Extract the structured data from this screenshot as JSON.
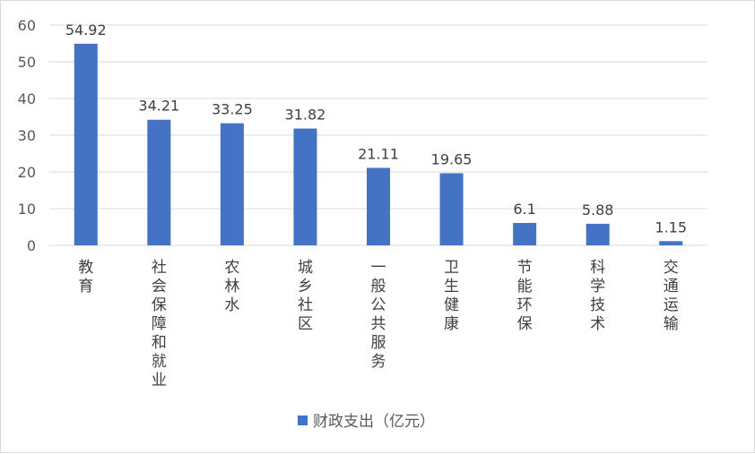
{
  "chart_data": {
    "type": "bar",
    "categories": [
      "教育",
      "社会保障和就业",
      "农林水",
      "城乡社区",
      "一般公共服务",
      "卫生健康",
      "节能环保",
      "科学技术",
      "交通运输"
    ],
    "series": [
      {
        "name": "财政支出（亿元）",
        "values": [
          54.92,
          34.21,
          33.25,
          31.82,
          21.11,
          19.65,
          6.1,
          5.88,
          1.15
        ]
      }
    ],
    "data_labels": [
      "54.92",
      "34.21",
      "33.25",
      "31.82",
      "21.11",
      "19.65",
      "6.1",
      "5.88",
      "1.15"
    ],
    "y_ticks": [
      "0",
      "10",
      "20",
      "30",
      "40",
      "50",
      "60"
    ],
    "ylim": [
      0,
      60
    ],
    "grid": true,
    "legend_position": "bottom",
    "bar_color": "#4472c4",
    "grid_color": "#d9d9d9"
  }
}
